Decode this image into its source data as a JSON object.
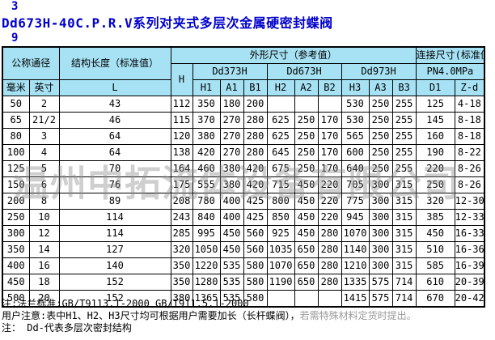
{
  "page": {
    "number_top": "3",
    "title": "Dd673H-40C.P.R.V系列对夹式多层次金属硬密封蝶阀",
    "number_below": "9"
  },
  "colors": {
    "title_blue": "#0000cc",
    "header_bg": "#a6e2f4",
    "border": "#000000",
    "watermark_gray": "#8c8c8c",
    "note_gray": "#9a9a9a"
  },
  "watermark": "温州中拓流体设备有限公司",
  "table": {
    "headers": {
      "nominal_diameter": "公称通径",
      "mm": "毫米",
      "inch": "英寸",
      "structure_length": "结构长度（标准值）",
      "L": "L",
      "outline_dims": "外形尺寸（参考值）",
      "H": "H",
      "dd373h": "Dd373H",
      "dd673h": "Dd673H",
      "dd973h": "Dd973H",
      "sub": [
        "H1",
        "A1",
        "B1",
        "H2",
        "A2",
        "B2",
        "H3",
        "A3",
        "B3"
      ],
      "connection_dims": "连接尺寸(标准值)",
      "pn": "PN4.0MPa",
      "D1": "D1",
      "Zd": "Z-d"
    },
    "rows": [
      [
        "50",
        "2",
        "43",
        "112",
        "350",
        "180",
        "200",
        "",
        "",
        "",
        "530",
        "250",
        "255",
        "125",
        "4-18"
      ],
      [
        "65",
        "21/2",
        "46",
        "115",
        "370",
        "270",
        "280",
        "625",
        "250",
        "170",
        "530",
        "250",
        "255",
        "145",
        "8-18"
      ],
      [
        "80",
        "3",
        "64",
        "120",
        "380",
        "270",
        "280",
        "625",
        "250",
        "170",
        "565",
        "250",
        "255",
        "160",
        "8-18"
      ],
      [
        "100",
        "4",
        "64",
        "138",
        "420",
        "270",
        "280",
        "645",
        "250",
        "170",
        "600",
        "250",
        "255",
        "190",
        "8-22"
      ],
      [
        "125",
        "5",
        "70",
        "164",
        "460",
        "380",
        "420",
        "675",
        "250",
        "170",
        "640",
        "250",
        "255",
        "220",
        "8-26"
      ],
      [
        "150",
        "6",
        "76",
        "175",
        "555",
        "380",
        "420",
        "715",
        "450",
        "220",
        "705",
        "300",
        "315",
        "250",
        "8-26"
      ],
      [
        "200",
        "8",
        "89",
        "208",
        "780",
        "400",
        "425",
        "800",
        "450",
        "220",
        "775",
        "300",
        "315",
        "320",
        "12-30"
      ],
      [
        "250",
        "10",
        "114",
        "243",
        "840",
        "400",
        "425",
        "850",
        "450",
        "220",
        "945",
        "300",
        "315",
        "385",
        "12-33"
      ],
      [
        "300",
        "12",
        "114",
        "285",
        "995",
        "450",
        "560",
        "925",
        "450",
        "280",
        "1070",
        "300",
        "315",
        "450",
        "16-33"
      ],
      [
        "350",
        "14",
        "127",
        "320",
        "1050",
        "450",
        "560",
        "1035",
        "650",
        "280",
        "1140",
        "300",
        "315",
        "510",
        "16-36"
      ],
      [
        "400",
        "16",
        "140",
        "350",
        "1220",
        "535",
        "580",
        "1070",
        "650",
        "280",
        "1210",
        "300",
        "315",
        "585",
        "16-39"
      ],
      [
        "450",
        "18",
        "152",
        "350",
        "1280",
        "535",
        "580",
        "1190",
        "650",
        "280",
        "1335",
        "575",
        "714",
        "610",
        "20-39"
      ],
      [
        "500",
        "20",
        "152",
        "380",
        "1365",
        "535",
        "580",
        "",
        "",
        "",
        "1415",
        "575",
        "714",
        "670",
        "20-42"
      ]
    ]
  },
  "notes": {
    "note1": "注:法兰标准:GB/T9113.1-2000 GB/T911.5.1-2000",
    "note2_black": "用户注意:表中H1、H2、H3尺寸均可根据用户需要加长（长杆蝶阀），",
    "note2_gray": "若需特殊材料定货时提出。",
    "note3": "注： Dd-代表多层次密封结构"
  }
}
